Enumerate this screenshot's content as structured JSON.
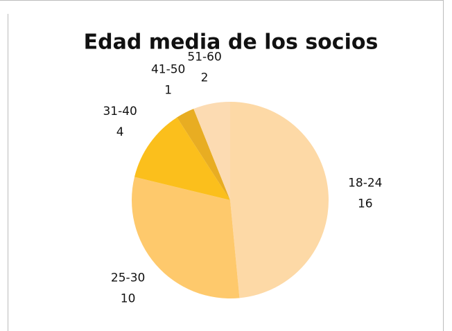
{
  "chart_data": {
    "type": "pie",
    "title": "Edad media de los socios",
    "categories": [
      "18-24",
      "25-30",
      "31-40",
      "41-50",
      "51-60"
    ],
    "values": [
      16,
      10,
      4,
      1,
      2
    ],
    "colors": [
      "#fdd9a6",
      "#fec96c",
      "#fbbf1c",
      "#e8ad22",
      "#fcdbb2"
    ]
  }
}
